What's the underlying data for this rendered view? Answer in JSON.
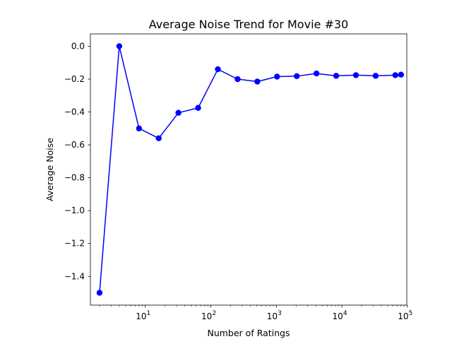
{
  "chart_data": {
    "type": "line",
    "title": "Average Noise Trend for Movie #30",
    "xlabel": "Number of Ratings",
    "ylabel": "Average Noise",
    "xscale": "log",
    "xlim": [
      1.45,
      98000
    ],
    "ylim": [
      -1.575,
      0.075
    ],
    "grid": false,
    "series": [
      {
        "name": "Average Noise",
        "color": "#0000ff",
        "marker": "circle",
        "x": [
          2,
          4,
          8,
          16,
          32,
          64,
          128,
          256,
          512,
          1024,
          2048,
          4096,
          8192,
          16384,
          32768,
          65536,
          80000
        ],
        "y": [
          -1.5,
          0.0,
          -0.5,
          -0.56,
          -0.405,
          -0.375,
          -0.14,
          -0.2,
          -0.215,
          -0.185,
          -0.182,
          -0.166,
          -0.18,
          -0.176,
          -0.18,
          -0.176,
          -0.173
        ]
      }
    ],
    "yticks": [
      {
        "value": 0.0,
        "label": "0.0"
      },
      {
        "value": -0.2,
        "label": "−0.2"
      },
      {
        "value": -0.4,
        "label": "−0.4"
      },
      {
        "value": -0.6,
        "label": "−0.6"
      },
      {
        "value": -0.8,
        "label": "−0.8"
      },
      {
        "value": -1.0,
        "label": "−1.0"
      },
      {
        "value": -1.2,
        "label": "−1.2"
      },
      {
        "value": -1.4,
        "label": "−1.4"
      }
    ],
    "xticks": [
      {
        "value": 10,
        "base": "10",
        "exp": "1"
      },
      {
        "value": 100,
        "base": "10",
        "exp": "2"
      },
      {
        "value": 1000,
        "base": "10",
        "exp": "3"
      },
      {
        "value": 10000,
        "base": "10",
        "exp": "4"
      },
      {
        "value": 100000,
        "base": "10",
        "exp": "5"
      }
    ]
  }
}
